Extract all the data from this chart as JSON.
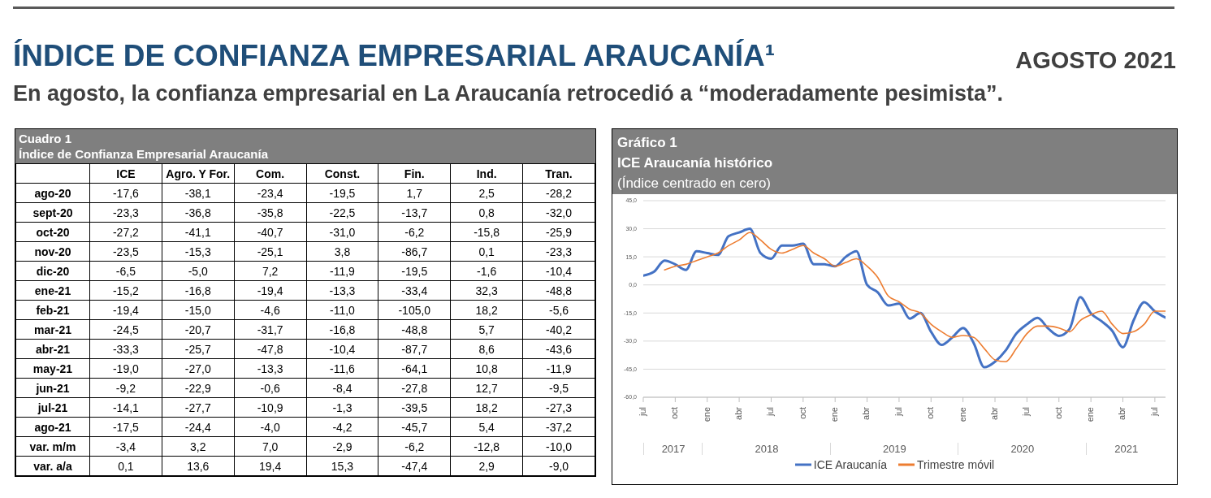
{
  "chart_data": [
    {
      "type": "other",
      "title": "ÍNDICE DE CONFIANZA EMPRESARIAL ARAUCANÍA¹",
      "subtitle": "En agosto, la confianza empresarial en La Araucanía retrocedió a “moderadamente pesimista”.",
      "annotations": [
        "AGOSTO 2021"
      ]
    },
    {
      "type": "heatmap",
      "title": "Cuadro 1",
      "subtitle": "Índice de Confianza Empresarial Araucanía",
      "categories": [
        "ICE",
        "Agro. Y For.",
        "Com.",
        "Const.",
        "Fin.",
        "Ind.",
        "Tran."
      ],
      "y_categories": [
        "ago-20",
        "sept-20",
        "oct-20",
        "nov-20",
        "dic-20",
        "ene-21",
        "feb-21",
        "mar-21",
        "abr-21",
        "may-21",
        "jun-21",
        "jul-21",
        "ago-21",
        "var. m/m",
        "var. a/a"
      ],
      "cells": [
        [
          -17.6,
          -38.1,
          -23.4,
          -19.5,
          1.7,
          2.5,
          -28.2
        ],
        [
          -23.3,
          -36.8,
          -35.8,
          -22.5,
          -13.7,
          0.8,
          -32.0
        ],
        [
          -27.2,
          -41.1,
          -40.7,
          -31.0,
          -6.2,
          -15.8,
          -25.9
        ],
        [
          -23.5,
          -15.3,
          -25.1,
          3.8,
          -86.7,
          0.1,
          -23.3
        ],
        [
          -6.5,
          -5.0,
          7.2,
          -11.9,
          -19.5,
          -1.6,
          -10.4
        ],
        [
          -15.2,
          -16.8,
          -19.4,
          -13.3,
          -33.4,
          32.3,
          -48.8
        ],
        [
          -19.4,
          -15.0,
          -4.6,
          -11.0,
          -105.0,
          18.2,
          -5.6
        ],
        [
          -24.5,
          -20.7,
          -31.7,
          -16.8,
          -48.8,
          5.7,
          -40.2
        ],
        [
          -33.3,
          -25.7,
          -47.8,
          -10.4,
          -87.7,
          8.6,
          -43.6
        ],
        [
          -19.0,
          -27.0,
          -13.3,
          -11.6,
          -64.1,
          10.8,
          -11.9
        ],
        [
          -9.2,
          -22.9,
          -0.6,
          -8.4,
          -27.8,
          12.7,
          -9.5
        ],
        [
          -14.1,
          -27.7,
          -10.9,
          -1.3,
          -39.5,
          18.2,
          -27.3
        ],
        [
          -17.5,
          -24.4,
          -4.0,
          -4.2,
          -45.7,
          5.4,
          -37.2
        ],
        [
          -3.4,
          3.2,
          7.0,
          -2.9,
          -6.2,
          -12.8,
          -10.0
        ],
        [
          0.1,
          13.6,
          19.4,
          15.3,
          -47.4,
          2.9,
          -9.0
        ]
      ],
      "cell_labels": [
        [
          "-17,6",
          "-38,1",
          "-23,4",
          "-19,5",
          "1,7",
          "2,5",
          "-28,2"
        ],
        [
          "-23,3",
          "-36,8",
          "-35,8",
          "-22,5",
          "-13,7",
          "0,8",
          "-32,0"
        ],
        [
          "-27,2",
          "-41,1",
          "-40,7",
          "-31,0",
          "-6,2",
          "-15,8",
          "-25,9"
        ],
        [
          "-23,5",
          "-15,3",
          "-25,1",
          "3,8",
          "-86,7",
          "0,1",
          "-23,3"
        ],
        [
          "-6,5",
          "-5,0",
          "7,2",
          "-11,9",
          "-19,5",
          "-1,6",
          "-10,4"
        ],
        [
          "-15,2",
          "-16,8",
          "-19,4",
          "-13,3",
          "-33,4",
          "32,3",
          "-48,8"
        ],
        [
          "-19,4",
          "-15,0",
          "-4,6",
          "-11,0",
          "-105,0",
          "18,2",
          "-5,6"
        ],
        [
          "-24,5",
          "-20,7",
          "-31,7",
          "-16,8",
          "-48,8",
          "5,7",
          "-40,2"
        ],
        [
          "-33,3",
          "-25,7",
          "-47,8",
          "-10,4",
          "-87,7",
          "8,6",
          "-43,6"
        ],
        [
          "-19,0",
          "-27,0",
          "-13,3",
          "-11,6",
          "-64,1",
          "10,8",
          "-11,9"
        ],
        [
          "-9,2",
          "-22,9",
          "-0,6",
          "-8,4",
          "-27,8",
          "12,7",
          "-9,5"
        ],
        [
          "-14,1",
          "-27,7",
          "-10,9",
          "-1,3",
          "-39,5",
          "18,2",
          "-27,3"
        ],
        [
          "-17,5",
          "-24,4",
          "-4,0",
          "-4,2",
          "-45,7",
          "5,4",
          "-37,2"
        ],
        [
          "-3,4",
          "3,2",
          "7,0",
          "-2,9",
          "-6,2",
          "-12,8",
          "-10,0"
        ],
        [
          "0,1",
          "13,6",
          "19,4",
          "15,3",
          "-47,4",
          "2,9",
          "-9,0"
        ]
      ],
      "data_labels": true
    },
    {
      "type": "line",
      "title": "Gráfico 1",
      "subtitle": "ICE Araucanía histórico",
      "ylabel": "(Índice centrado en cero)",
      "x": [
        "2017-07",
        "2017-08",
        "2017-09",
        "2017-10",
        "2017-11",
        "2017-12",
        "2018-01",
        "2018-02",
        "2018-03",
        "2018-04",
        "2018-05",
        "2018-06",
        "2018-07",
        "2018-08",
        "2018-09",
        "2018-10",
        "2018-11",
        "2018-12",
        "2019-01",
        "2019-02",
        "2019-03",
        "2019-04",
        "2019-05",
        "2019-06",
        "2019-07",
        "2019-08",
        "2019-09",
        "2019-10",
        "2019-11",
        "2019-12",
        "2020-01",
        "2020-02",
        "2020-03",
        "2020-04",
        "2020-05",
        "2020-06",
        "2020-07",
        "2020-08",
        "2020-09",
        "2020-10",
        "2020-11",
        "2020-12",
        "2021-01",
        "2021-02",
        "2021-03",
        "2021-04",
        "2021-05",
        "2021-06",
        "2021-07",
        "2021-08"
      ],
      "xlim": [
        "2017-07",
        "2021-08"
      ],
      "xticks": [
        {
          "value": "2017-07",
          "label": "jul"
        },
        {
          "value": "2017-10",
          "label": "oct"
        },
        {
          "value": "2018-01",
          "label": "ene"
        },
        {
          "value": "2018-04",
          "label": "abr"
        },
        {
          "value": "2018-07",
          "label": "jul"
        },
        {
          "value": "2018-10",
          "label": "oct"
        },
        {
          "value": "2019-01",
          "label": "ene"
        },
        {
          "value": "2019-04",
          "label": "abr"
        },
        {
          "value": "2019-07",
          "label": "jul"
        },
        {
          "value": "2019-10",
          "label": "oct"
        },
        {
          "value": "2020-01",
          "label": "ene"
        },
        {
          "value": "2020-04",
          "label": "abr"
        },
        {
          "value": "2020-07",
          "label": "jul"
        },
        {
          "value": "2020-10",
          "label": "oct"
        },
        {
          "value": "2021-01",
          "label": "ene"
        },
        {
          "value": "2021-04",
          "label": "abr"
        },
        {
          "value": "2021-07",
          "label": "jul"
        }
      ],
      "ylim": [
        -60,
        45
      ],
      "yticks": [
        {
          "value": -60,
          "label": "-60,0"
        },
        {
          "value": -45,
          "label": "-45,0"
        },
        {
          "value": -30,
          "label": "-30,0"
        },
        {
          "value": -15,
          "label": "-15,0"
        },
        {
          "value": 0,
          "label": "0,0"
        },
        {
          "value": 15,
          "label": "15,0"
        },
        {
          "value": 30,
          "label": "30,0"
        },
        {
          "value": 45,
          "label": "45,0"
        }
      ],
      "grid": "y",
      "legend": "bottom",
      "marker": "none",
      "line_style": "solid",
      "annotations": [
        "2017",
        "2018",
        "2019",
        "2020",
        "2021"
      ],
      "series": [
        {
          "name": "ICE Araucanía",
          "color": "#4472c4",
          "values": [
            5,
            7,
            13,
            11,
            8,
            18,
            17,
            16,
            26,
            28,
            30,
            17,
            14,
            21,
            21,
            22,
            11,
            11,
            10,
            15,
            18,
            0,
            -4,
            -11,
            -10,
            -18,
            -15,
            -25,
            -32,
            -28,
            -23,
            -31,
            -44,
            -41,
            -35,
            -26,
            -21,
            -17.6,
            -23.3,
            -27.2,
            -23.5,
            -6.5,
            -15.2,
            -19.4,
            -24.5,
            -33.3,
            -19.0,
            -9.2,
            -14.1,
            -17.5
          ]
        },
        {
          "name": "Trimestre móvil",
          "color": "#ed7d31",
          "values": [
            null,
            null,
            8,
            10,
            11,
            13,
            15,
            17,
            21,
            24,
            28,
            24,
            19,
            17,
            19,
            21,
            17,
            14,
            10,
            12,
            14,
            10,
            4,
            -6,
            -9,
            -13,
            -15,
            -21,
            -25,
            -28,
            -27,
            -28,
            -34,
            -40,
            -41,
            -34,
            -26,
            -22,
            -22,
            -23,
            -25,
            -19,
            -16,
            -14,
            -21,
            -26,
            -25,
            -21,
            -14,
            -14
          ]
        }
      ]
    }
  ]
}
